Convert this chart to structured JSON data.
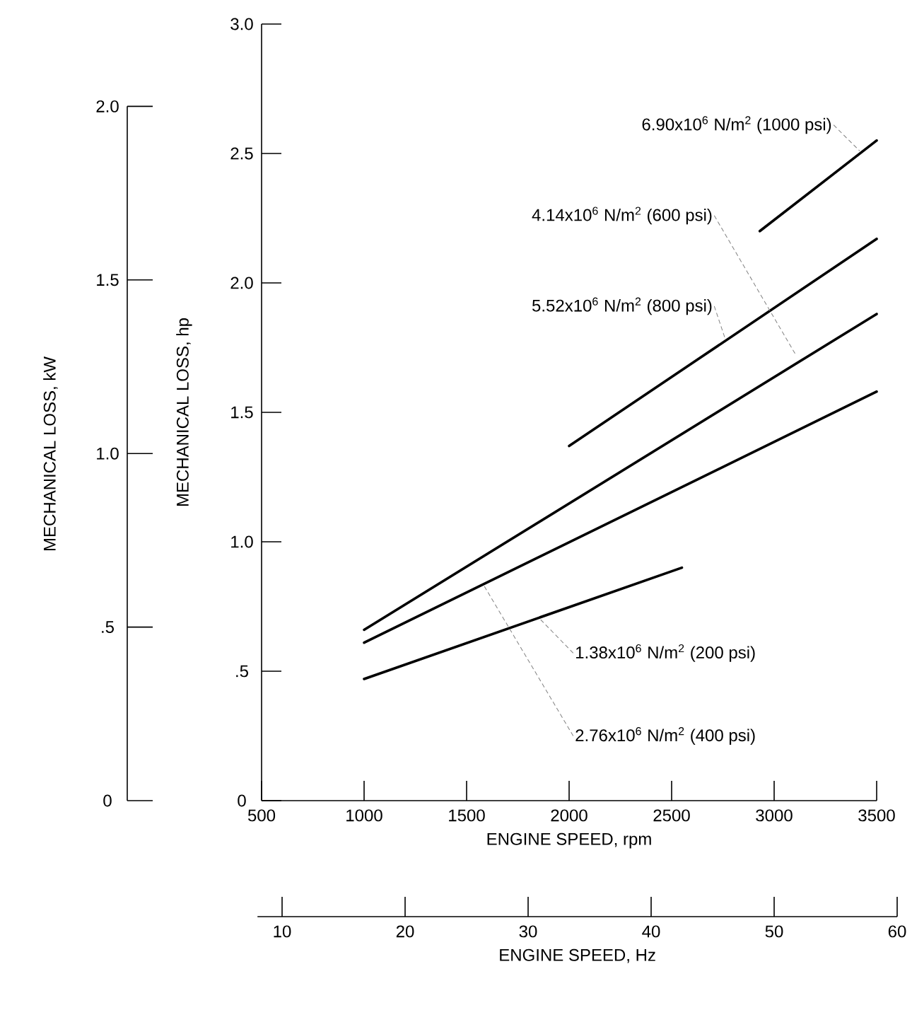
{
  "chart_data": {
    "type": "line",
    "xlabel": "ENGINE SPEED, rpm",
    "ylabel": "MECHANICAL LOSS, hp",
    "y2label": "MECHANICAL LOSS, kW",
    "x2label": "ENGINE SPEED, Hz",
    "xlim": [
      500,
      3500
    ],
    "xticks": [
      500,
      1000,
      1500,
      2000,
      2500,
      3000,
      3500
    ],
    "ylim": [
      0,
      3.0
    ],
    "yticks": [
      {
        "value": 0,
        "label": "0"
      },
      {
        "value": 0.5,
        "label": ".5"
      },
      {
        "value": 1.0,
        "label": "1.0"
      },
      {
        "value": 1.5,
        "label": "1.5"
      },
      {
        "value": 2.0,
        "label": "2.0"
      },
      {
        "value": 2.5,
        "label": "2.5"
      },
      {
        "value": 3.0,
        "label": "3.0"
      }
    ],
    "y2lim": [
      0,
      2.0
    ],
    "y2ticks": [
      {
        "value": 0,
        "label": "0"
      },
      {
        "value": 0.5,
        "label": ".5"
      },
      {
        "value": 1.0,
        "label": "1.0"
      },
      {
        "value": 1.5,
        "label": "1.5"
      },
      {
        "value": 2.0,
        "label": "2.0"
      }
    ],
    "x2lim": [
      8,
      60
    ],
    "x2ticks": [
      10,
      20,
      30,
      40,
      50,
      60
    ],
    "series": [
      {
        "name": "1.38x10$^{6}$ N/m$^{2}$ (200 psi)",
        "color": "#000000",
        "x": [
          1000,
          2550
        ],
        "values": [
          0.47,
          0.9
        ]
      },
      {
        "name": "2.76x10$^{6}$ N/m$^{2}$ (400 psi)",
        "color": "#000000",
        "x": [
          1000,
          3500
        ],
        "values": [
          0.61,
          1.58
        ]
      },
      {
        "name": "4.14x10$^{6}$ N/m$^{2}$ (600 psi)",
        "color": "#000000",
        "x": [
          1000,
          3500
        ],
        "values": [
          0.66,
          1.88
        ]
      },
      {
        "name": "5.52x10$^{6}$ N/m$^{2}$ (800 psi)",
        "color": "#000000",
        "x": [
          2000,
          3500
        ],
        "values": [
          1.37,
          2.17
        ]
      },
      {
        "name": "6.90x10$^{6}$ N/m$^{2}$ (1000 psi)",
        "color": "#000000",
        "x": [
          2930,
          3500
        ],
        "values": [
          2.2,
          2.55
        ]
      }
    ]
  }
}
